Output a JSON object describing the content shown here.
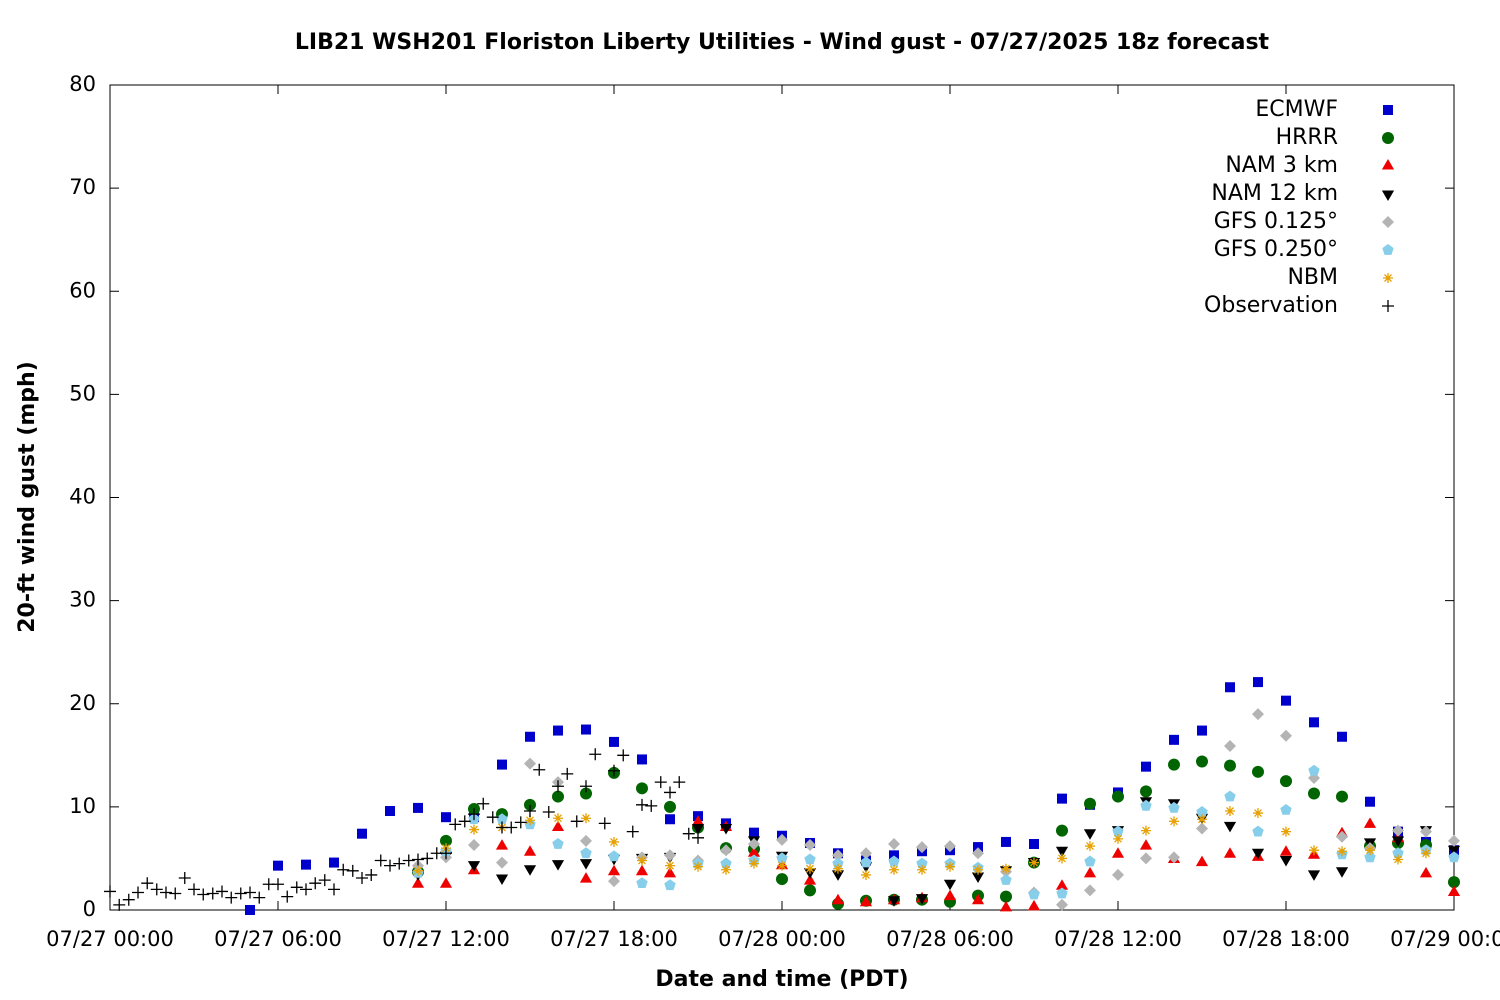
{
  "chart_data": {
    "type": "scatter",
    "title": "LIB21 WSH201 Floriston Liberty Utilities - Wind gust - 07/27/2025 18z forecast",
    "xlabel": "Date and time (PDT)",
    "ylabel": "20-ft wind gust (mph)",
    "xlim": [
      0,
      48
    ],
    "ylim": [
      0,
      80
    ],
    "xticks": [
      {
        "value": 0,
        "label": "07/27 00:00"
      },
      {
        "value": 6,
        "label": "07/27 06:00"
      },
      {
        "value": 12,
        "label": "07/27 12:00"
      },
      {
        "value": 18,
        "label": "07/27 18:00"
      },
      {
        "value": 24,
        "label": "07/28 00:00"
      },
      {
        "value": 30,
        "label": "07/28 06:00"
      },
      {
        "value": 36,
        "label": "07/28 12:00"
      },
      {
        "value": 42,
        "label": "07/28 18:00"
      },
      {
        "value": 48,
        "label": "07/29 00:00"
      }
    ],
    "yticks": [
      0,
      10,
      20,
      30,
      40,
      50,
      60,
      70,
      80
    ],
    "grid": false,
    "legend": "top-right",
    "series": [
      {
        "name": "ECMWF",
        "color": "#0000cc",
        "marker": "square",
        "x": [
          5,
          6,
          7,
          8,
          9,
          10,
          11,
          12,
          13,
          14,
          15,
          16,
          17,
          18,
          19,
          20,
          21,
          22,
          23,
          24,
          25,
          26,
          27,
          28,
          29,
          30,
          31,
          32,
          33,
          34,
          35,
          36,
          37,
          38,
          39,
          40,
          41,
          42,
          43,
          44,
          45,
          46,
          47,
          48
        ],
        "values": [
          0,
          4.3,
          4.4,
          4.6,
          7.4,
          9.6,
          9.9,
          9.0,
          9.0,
          14.1,
          16.8,
          17.4,
          17.5,
          16.3,
          14.6,
          8.8,
          9.1,
          8.4,
          7.5,
          7.2,
          6.5,
          5.5,
          4.8,
          5.3,
          5.7,
          5.8,
          6.1,
          6.6,
          6.4,
          10.8,
          10.2,
          11.4,
          13.9,
          16.5,
          17.4,
          21.6,
          22.1,
          20.3,
          18.2,
          16.8,
          10.5,
          7.6,
          6.6,
          5.8
        ]
      },
      {
        "name": "HRRR",
        "color": "#006400",
        "marker": "circle",
        "x": [
          11,
          12,
          13,
          14,
          15,
          16,
          17,
          18,
          19,
          20,
          21,
          22,
          23,
          24,
          25,
          26,
          27,
          28,
          29,
          30,
          31,
          32,
          33,
          34,
          35,
          36,
          37,
          38,
          39,
          40,
          41,
          42,
          43,
          44,
          45,
          46,
          47,
          48
        ],
        "values": [
          3.7,
          6.7,
          9.8,
          9.3,
          10.2,
          11.0,
          11.3,
          13.3,
          11.8,
          10.0,
          8.0,
          6.0,
          5.9,
          3.0,
          1.9,
          0.6,
          0.9,
          1.0,
          1.0,
          0.8,
          1.4,
          1.3,
          4.6,
          7.7,
          10.3,
          11.0,
          11.5,
          14.1,
          14.4,
          14.0,
          13.4,
          12.5,
          11.3,
          11.0,
          6.2,
          6.5,
          6.3,
          2.7
        ]
      },
      {
        "name": "NAM 3 km",
        "color": "#ee0000",
        "marker": "triangle",
        "x": [
          11,
          12,
          13,
          14,
          15,
          16,
          17,
          18,
          19,
          20,
          21,
          22,
          23,
          24,
          25,
          26,
          27,
          28,
          29,
          30,
          31,
          32,
          33,
          34,
          35,
          36,
          37,
          38,
          39,
          40,
          41,
          42,
          43,
          44,
          45,
          46,
          47,
          48
        ],
        "values": [
          2.5,
          2.5,
          3.8,
          6.2,
          5.6,
          8.0,
          3.0,
          3.7,
          3.7,
          3.5,
          8.5,
          8.0,
          5.5,
          4.3,
          2.8,
          0.9,
          0.7,
          0.9,
          1.1,
          1.3,
          0.9,
          0.2,
          0.3,
          2.3,
          3.5,
          5.4,
          6.2,
          4.9,
          4.6,
          5.4,
          5.1,
          5.6,
          5.3,
          7.4,
          8.3,
          6.9,
          3.5,
          1.7
        ]
      },
      {
        "name": "NAM 12 km",
        "color": "#000000",
        "marker": "triangle-down",
        "x": [
          11,
          12,
          13,
          14,
          15,
          16,
          17,
          18,
          19,
          20,
          21,
          22,
          23,
          24,
          25,
          26,
          27,
          28,
          29,
          30,
          31,
          32,
          33,
          34,
          35,
          36,
          37,
          38,
          39,
          40,
          41,
          42,
          43,
          44,
          45,
          46,
          47,
          48
        ],
        "values": [
          3.5,
          5.3,
          4.4,
          3.1,
          4.0,
          4.5,
          4.6,
          5.0,
          5.1,
          5.2,
          8.0,
          8.0,
          6.8,
          5.3,
          3.7,
          3.5,
          4.3,
          1.0,
          1.2,
          2.6,
          3.3,
          3.9,
          4.7,
          5.8,
          7.5,
          7.8,
          10.6,
          10.4,
          9.0,
          8.2,
          5.6,
          4.9,
          3.5,
          3.8,
          6.6,
          6.8,
          7.8,
          5.9
        ]
      },
      {
        "name": "GFS 0.125°",
        "color": "#b4b4b4",
        "marker": "diamond",
        "x": [
          11,
          12,
          13,
          14,
          15,
          16,
          17,
          18,
          19,
          20,
          21,
          22,
          23,
          24,
          25,
          26,
          27,
          28,
          29,
          30,
          31,
          32,
          33,
          34,
          35,
          36,
          37,
          38,
          39,
          40,
          41,
          42,
          43,
          44,
          45,
          46,
          47,
          48
        ],
        "values": [
          4.3,
          5.1,
          6.3,
          4.6,
          14.2,
          12.4,
          6.7,
          2.8,
          5.1,
          5.3,
          4.8,
          5.8,
          6.4,
          6.8,
          6.3,
          5.3,
          5.5,
          6.4,
          6.1,
          6.2,
          5.5,
          3.7,
          1.7,
          0.5,
          1.9,
          3.4,
          5.0,
          5.1,
          7.9,
          15.9,
          19.0,
          16.9,
          12.8,
          7.1,
          6.0,
          7.7,
          7.6,
          6.7
        ]
      },
      {
        "name": "GFS 0.250°",
        "color": "#87ceeb",
        "marker": "pentagon",
        "x": [
          11,
          12,
          13,
          14,
          15,
          16,
          17,
          18,
          19,
          20,
          21,
          22,
          23,
          24,
          25,
          26,
          27,
          28,
          29,
          30,
          31,
          32,
          33,
          34,
          35,
          36,
          37,
          38,
          39,
          40,
          41,
          42,
          43,
          44,
          45,
          46,
          47,
          48
        ],
        "values": [
          3.6,
          5.7,
          8.8,
          8.8,
          8.3,
          6.4,
          5.5,
          5.2,
          2.6,
          2.4,
          4.5,
          4.5,
          4.8,
          5.0,
          4.9,
          4.5,
          4.6,
          4.7,
          4.5,
          4.5,
          4.1,
          2.9,
          1.5,
          1.6,
          4.7,
          7.6,
          10.1,
          9.9,
          9.5,
          11.0,
          7.6,
          9.7,
          13.5,
          5.4,
          5.1,
          5.5,
          5.8,
          5.1
        ]
      },
      {
        "name": "NBM",
        "color": "#e6a000",
        "marker": "asterisk",
        "x": [
          11,
          12,
          13,
          14,
          15,
          16,
          17,
          18,
          19,
          20,
          21,
          22,
          23,
          24,
          25,
          26,
          27,
          28,
          29,
          30,
          31,
          32,
          33,
          34,
          35,
          36,
          37,
          38,
          39,
          40,
          41,
          42,
          43,
          44,
          45,
          46,
          47
        ],
        "values": [
          3.8,
          6.0,
          7.8,
          8.0,
          8.7,
          8.9,
          8.9,
          6.6,
          4.8,
          4.3,
          4.2,
          3.9,
          4.5,
          4.3,
          4.0,
          4.0,
          3.4,
          3.9,
          3.9,
          4.2,
          3.9,
          4.0,
          4.6,
          5.0,
          6.2,
          6.9,
          7.7,
          8.6,
          8.8,
          9.6,
          9.4,
          7.6,
          5.8,
          5.7,
          5.8,
          4.9,
          5.5
        ]
      },
      {
        "name": "Observation",
        "color": "#000000",
        "marker": "plus",
        "x": [
          0,
          0.33,
          0.67,
          1,
          1.33,
          1.67,
          2,
          2.33,
          2.67,
          3,
          3.33,
          3.67,
          4,
          4.33,
          4.67,
          5,
          5.33,
          5.67,
          6,
          6.33,
          6.67,
          7,
          7.33,
          7.67,
          8,
          8.33,
          8.67,
          9,
          9.33,
          9.67,
          10,
          10.33,
          10.67,
          11,
          11.33,
          11.67,
          12,
          12.33,
          12.67,
          13,
          13.33,
          13.67,
          14,
          14.33,
          14.67,
          15,
          15.33,
          15.67,
          16,
          16.33,
          16.67,
          17,
          17.33,
          17.67,
          18,
          18.33,
          18.67,
          19,
          19.33,
          19.67,
          20,
          20.33,
          20.67,
          21
        ],
        "values": [
          1.8,
          0.5,
          1.0,
          1.7,
          2.6,
          2.0,
          1.7,
          1.6,
          3.1,
          2.0,
          1.5,
          1.6,
          1.8,
          1.2,
          1.6,
          1.7,
          1.2,
          2.5,
          2.5,
          1.3,
          2.2,
          2.0,
          2.6,
          2.9,
          2.0,
          3.9,
          3.8,
          3.1,
          3.4,
          4.8,
          4.3,
          4.5,
          4.8,
          4.9,
          5.0,
          5.5,
          5.5,
          8.3,
          8.6,
          9.3,
          10.3,
          9.0,
          8.0,
          8.0,
          8.5,
          9.6,
          13.6,
          9.5,
          12.0,
          13.2,
          8.6,
          12.0,
          15.1,
          8.4,
          13.5,
          15.0,
          7.6,
          10.2,
          10.1,
          12.4,
          11.4,
          12.4,
          7.4,
          7.0
        ]
      }
    ]
  }
}
